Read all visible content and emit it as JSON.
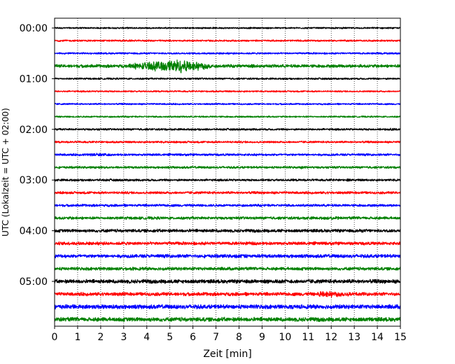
{
  "chart_data": {
    "type": "line",
    "title": "",
    "xlabel": "Zeit  [min]",
    "ylabel": "UTC (Lokalzeit = UTC + 02:00)",
    "xlim": [
      0,
      15
    ],
    "x_ticks": [
      0,
      1,
      2,
      3,
      4,
      5,
      6,
      7,
      8,
      9,
      10,
      11,
      12,
      13,
      14,
      15
    ],
    "y_tick_labels": [
      "00:00",
      "01:00",
      "02:00",
      "03:00",
      "04:00",
      "05:00"
    ],
    "grid": "vertical dotted lines at each minute",
    "trace_interval_min": 15,
    "trace_colors": [
      "#000000",
      "#ff0000",
      "#0000ff",
      "#008000"
    ],
    "series": [
      {
        "start": "00:00",
        "color": "black",
        "amplitude": 0.22,
        "events": []
      },
      {
        "start": "00:15",
        "color": "red",
        "amplitude": 0.25,
        "events": []
      },
      {
        "start": "00:30",
        "color": "blue",
        "amplitude": 0.25,
        "events": [
          {
            "start_min": 13.5,
            "end_min": 15,
            "amplitude": 0.4
          }
        ]
      },
      {
        "start": "00:45",
        "color": "green",
        "amplitude": 0.45,
        "events": [
          {
            "start_min": 3.2,
            "end_min": 6.8,
            "peak_min": 5.5,
            "amplitude": 2.4
          },
          {
            "start_min": 8.0,
            "end_min": 9.2,
            "amplitude": 0.7
          }
        ]
      },
      {
        "start": "01:00",
        "color": "black",
        "amplitude": 0.25,
        "events": []
      },
      {
        "start": "01:15",
        "color": "red",
        "amplitude": 0.22,
        "events": []
      },
      {
        "start": "01:30",
        "color": "blue",
        "amplitude": 0.22,
        "events": []
      },
      {
        "start": "01:45",
        "color": "green",
        "amplitude": 0.22,
        "events": []
      },
      {
        "start": "02:00",
        "color": "black",
        "amplitude": 0.28,
        "events": [
          {
            "start_min": 14.3,
            "end_min": 15,
            "amplitude": 0.5
          }
        ]
      },
      {
        "start": "02:15",
        "color": "red",
        "amplitude": 0.28,
        "events": []
      },
      {
        "start": "02:30",
        "color": "blue",
        "amplitude": 0.32,
        "events": [
          {
            "start_min": 1.3,
            "end_min": 2.3,
            "amplitude": 0.6
          }
        ]
      },
      {
        "start": "02:45",
        "color": "green",
        "amplitude": 0.32,
        "events": [
          {
            "start_min": 10.5,
            "end_min": 11.0,
            "amplitude": 0.6
          }
        ]
      },
      {
        "start": "03:00",
        "color": "black",
        "amplitude": 0.32,
        "events": [
          {
            "start_min": 12.5,
            "end_min": 12.9,
            "amplitude": 0.6
          }
        ]
      },
      {
        "start": "03:15",
        "color": "red",
        "amplitude": 0.35,
        "events": []
      },
      {
        "start": "03:30",
        "color": "blue",
        "amplitude": 0.35,
        "events": []
      },
      {
        "start": "03:45",
        "color": "green",
        "amplitude": 0.4,
        "events": [
          {
            "start_min": 12.0,
            "end_min": 12.6,
            "amplitude": 0.7
          }
        ]
      },
      {
        "start": "04:00",
        "color": "black",
        "amplitude": 0.45,
        "events": []
      },
      {
        "start": "04:15",
        "color": "red",
        "amplitude": 0.45,
        "events": []
      },
      {
        "start": "04:30",
        "color": "blue",
        "amplitude": 0.5,
        "events": [
          {
            "start_min": 7.8,
            "end_min": 8.8,
            "amplitude": 0.8
          }
        ]
      },
      {
        "start": "04:45",
        "color": "green",
        "amplitude": 0.45,
        "events": []
      },
      {
        "start": "05:00",
        "color": "black",
        "amplitude": 0.55,
        "events": [
          {
            "start_min": 8.5,
            "end_min": 10.5,
            "amplitude": 0.8
          }
        ]
      },
      {
        "start": "05:15",
        "color": "red",
        "amplitude": 0.5,
        "events": [
          {
            "start_min": 11.3,
            "end_min": 13.3,
            "peak_min": 11.6,
            "amplitude": 1.3
          }
        ]
      },
      {
        "start": "05:30",
        "color": "blue",
        "amplitude": 0.6,
        "events": [
          {
            "start_min": 0.5,
            "end_min": 3.0,
            "amplitude": 0.8
          },
          {
            "start_min": 9.8,
            "end_min": 10.8,
            "amplitude": 0.8
          }
        ]
      },
      {
        "start": "05:45",
        "color": "green",
        "amplitude": 0.6,
        "events": []
      }
    ]
  }
}
